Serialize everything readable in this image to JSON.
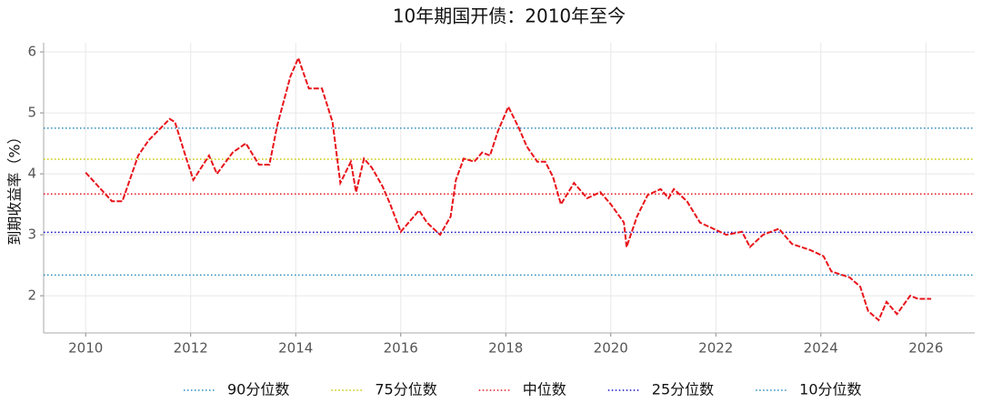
{
  "chart_data": {
    "type": "line",
    "title": "10年期国开债：2010年至今",
    "y_label": "到期收益率（%）",
    "x": [
      2010.0,
      2010.5,
      2010.7,
      2011.0,
      2011.2,
      2011.6,
      2011.7,
      2011.9,
      2012.05,
      2012.35,
      2012.5,
      2012.8,
      2013.05,
      2013.3,
      2013.5,
      2013.65,
      2013.9,
      2014.05,
      2014.25,
      2014.5,
      2014.7,
      2014.85,
      2015.05,
      2015.15,
      2015.3,
      2015.45,
      2015.65,
      2015.8,
      2016.0,
      2016.35,
      2016.5,
      2016.75,
      2016.95,
      2017.05,
      2017.2,
      2017.4,
      2017.55,
      2017.7,
      2017.85,
      2018.05,
      2018.25,
      2018.4,
      2018.6,
      2018.75,
      2018.9,
      2019.05,
      2019.3,
      2019.55,
      2019.8,
      2020.0,
      2020.25,
      2020.3,
      2020.5,
      2020.7,
      2020.95,
      2021.1,
      2021.2,
      2021.45,
      2021.7,
      2021.95,
      2022.2,
      2022.5,
      2022.65,
      2022.9,
      2023.2,
      2023.45,
      2023.8,
      2024.05,
      2024.2,
      2024.55,
      2024.75,
      2024.9,
      2025.1,
      2025.25,
      2025.45,
      2025.7,
      2025.85,
      2026.1
    ],
    "series": [
      {
        "color": "#e8141b",
        "values": [
          4.02,
          3.55,
          3.55,
          4.3,
          4.55,
          4.9,
          4.85,
          4.3,
          3.9,
          4.3,
          4.0,
          4.35,
          4.5,
          4.15,
          4.15,
          4.8,
          5.6,
          5.9,
          5.4,
          5.4,
          4.85,
          3.85,
          4.2,
          3.7,
          4.25,
          4.1,
          3.8,
          3.5,
          3.05,
          3.4,
          3.2,
          3.0,
          3.3,
          3.9,
          4.25,
          4.2,
          4.35,
          4.3,
          4.7,
          5.1,
          4.75,
          4.45,
          4.2,
          4.2,
          3.95,
          3.5,
          3.85,
          3.6,
          3.7,
          3.5,
          3.2,
          2.8,
          3.3,
          3.65,
          3.75,
          3.6,
          3.75,
          3.55,
          3.2,
          3.1,
          3.0,
          3.05,
          2.8,
          3.0,
          3.1,
          2.85,
          2.75,
          2.65,
          2.4,
          2.3,
          2.15,
          1.75,
          1.6,
          1.9,
          1.7,
          2.0,
          1.95,
          1.95
        ]
      }
    ],
    "hlines": [
      {
        "name": "90分位数",
        "value": 4.75,
        "color": "#2b8cbe"
      },
      {
        "name": "75分位数",
        "value": 4.24,
        "color": "#c8c800"
      },
      {
        "name": "中位数",
        "value": 3.67,
        "color": "#e8141b"
      },
      {
        "name": "25分位数",
        "value": 3.04,
        "color": "#1010c8"
      },
      {
        "name": "10分位数",
        "value": 2.34,
        "color": "#2b8cbe"
      }
    ],
    "xlim": [
      2009.2,
      2026.93
    ],
    "ylim": [
      1.39,
      6.15
    ],
    "xticks": [
      2010,
      2012,
      2014,
      2016,
      2018,
      2020,
      2022,
      2024,
      2026
    ],
    "yticks": [
      2,
      3,
      4,
      5,
      6
    ],
    "grid": true,
    "legend": "bottom"
  }
}
